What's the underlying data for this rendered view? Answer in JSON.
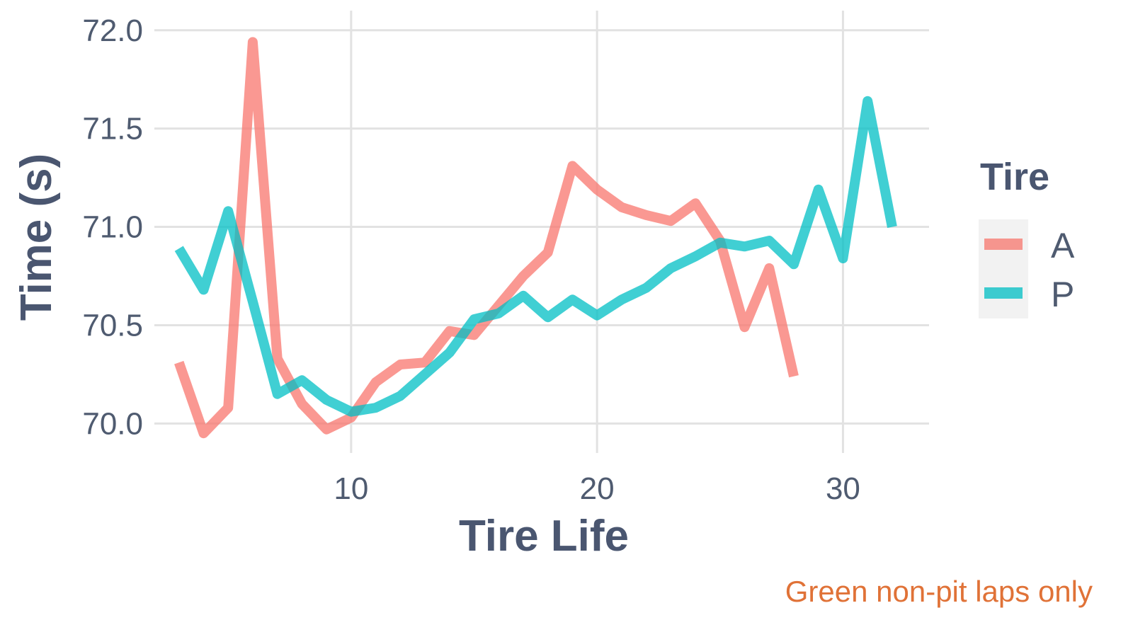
{
  "chart_data": {
    "type": "line",
    "xlabel": "Tire Life",
    "ylabel": "Time (s)",
    "caption": "Green non-pit laps only",
    "xlim": [
      2,
      33.5
    ],
    "ylim": [
      69.85,
      72.1
    ],
    "xticks": [
      10,
      20,
      30
    ],
    "yticks": [
      70.0,
      70.5,
      71.0,
      71.5,
      72.0
    ],
    "ytick_labels": [
      "70.0",
      "70.5",
      "71.0",
      "71.5",
      "72.0"
    ],
    "grid": true,
    "legend": {
      "title": "Tire",
      "position": "right"
    },
    "series": [
      {
        "name": "A",
        "color": "#f8766d",
        "x": [
          3,
          4,
          5,
          6,
          7,
          8,
          9,
          10,
          11,
          12,
          13,
          14,
          15,
          16,
          17,
          18,
          19,
          20,
          21,
          22,
          23,
          24,
          25,
          26,
          27,
          28
        ],
        "y": [
          70.31,
          69.95,
          70.08,
          71.94,
          70.33,
          70.1,
          69.97,
          70.03,
          70.21,
          70.3,
          70.31,
          70.47,
          70.45,
          70.6,
          70.75,
          70.87,
          71.31,
          71.19,
          71.1,
          71.06,
          71.03,
          71.12,
          70.93,
          70.49,
          70.79,
          70.24
        ]
      },
      {
        "name": "P",
        "color": "#00bfc4",
        "x": [
          3,
          4,
          5,
          6,
          7,
          8,
          9,
          10,
          11,
          12,
          13,
          14,
          15,
          16,
          17,
          18,
          19,
          20,
          21,
          22,
          23,
          24,
          25,
          26,
          27,
          28,
          29,
          30,
          31,
          32
        ],
        "y": [
          70.89,
          70.68,
          71.08,
          70.62,
          70.15,
          70.22,
          70.12,
          70.06,
          70.08,
          70.14,
          70.25,
          70.36,
          70.53,
          70.56,
          70.65,
          70.54,
          70.63,
          70.55,
          70.63,
          70.69,
          70.79,
          70.85,
          70.92,
          70.9,
          70.93,
          70.81,
          71.19,
          70.84,
          71.64,
          71.0
        ]
      }
    ]
  }
}
